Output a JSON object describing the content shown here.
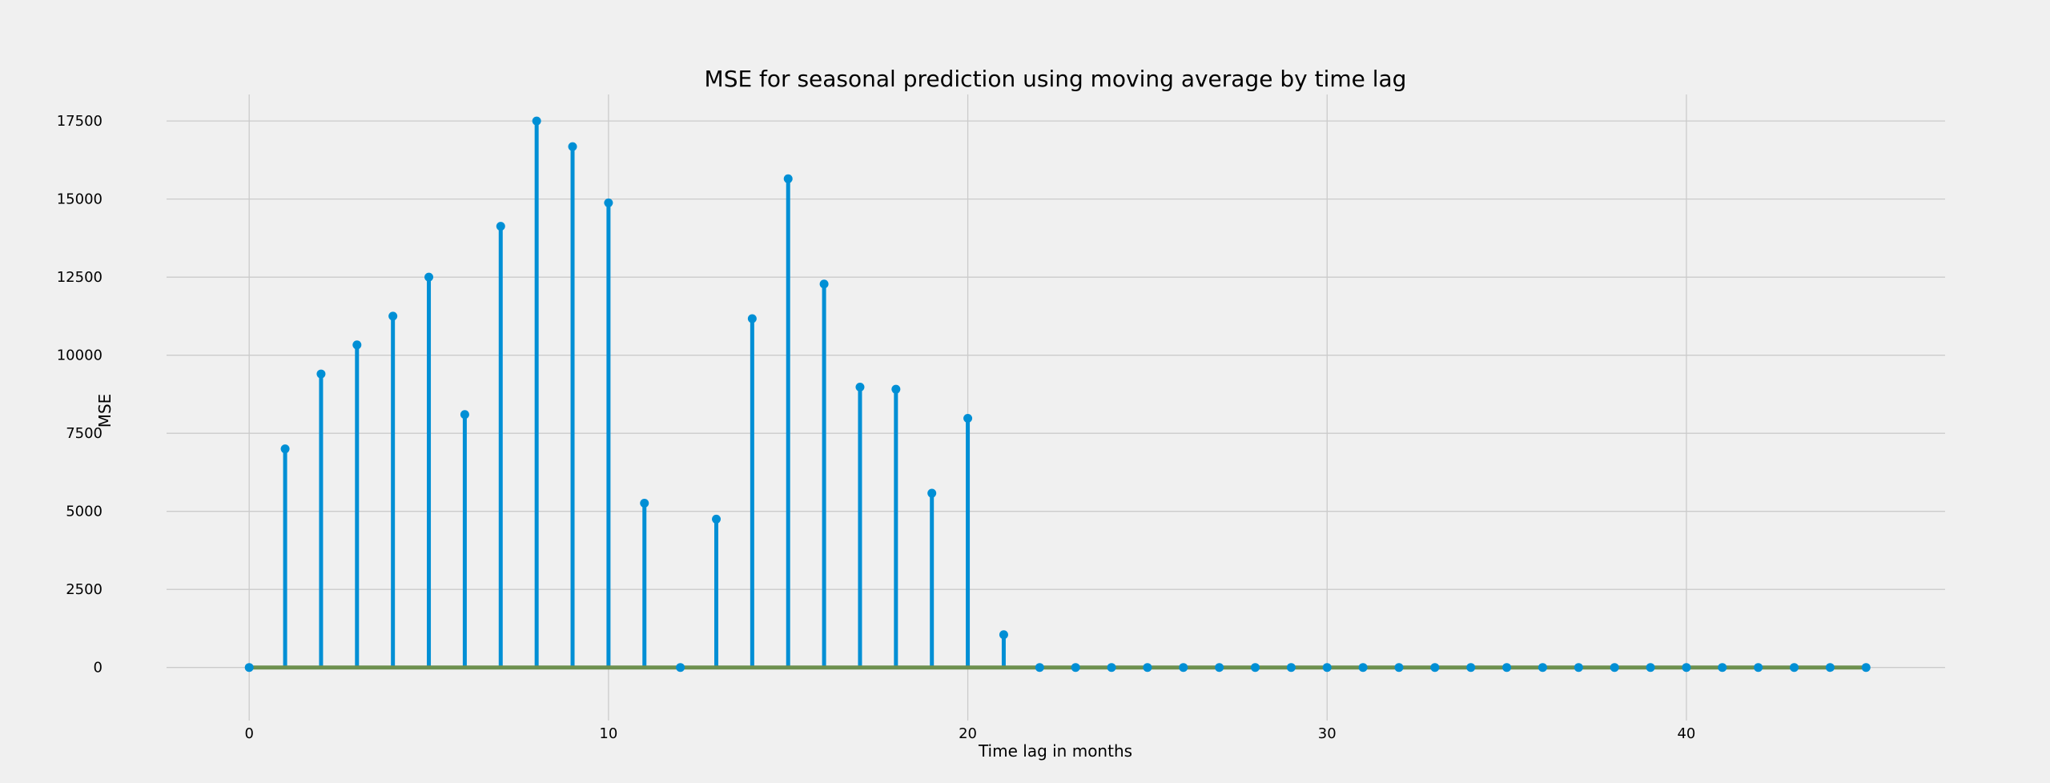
{
  "chart_data": {
    "type": "stem",
    "title": "MSE for seasonal prediction using moving average by time lag",
    "xlabel": "Time lag in months",
    "ylabel": "MSE",
    "x": [
      0,
      1,
      2,
      3,
      4,
      5,
      6,
      7,
      8,
      9,
      10,
      11,
      12,
      13,
      14,
      15,
      16,
      17,
      18,
      19,
      20,
      21,
      22,
      23,
      24,
      25,
      26,
      27,
      28,
      29,
      30,
      31,
      32,
      33,
      34,
      35,
      36,
      37,
      38,
      39,
      40,
      41,
      42,
      43,
      44,
      45
    ],
    "values": [
      0,
      7000,
      9400,
      10330,
      11250,
      12500,
      8100,
      14130,
      17500,
      16680,
      14880,
      5260,
      0,
      4750,
      11170,
      15650,
      12280,
      8980,
      8910,
      5580,
      7980,
      1050,
      0,
      0,
      0,
      0,
      0,
      0,
      0,
      0,
      0,
      0,
      0,
      0,
      0,
      0,
      0,
      0,
      0,
      0,
      0,
      0,
      0,
      0,
      0,
      0
    ],
    "xticks": [
      0,
      10,
      20,
      30,
      40
    ],
    "xtick_labels": [
      "0",
      "10",
      "20",
      "30",
      "40"
    ],
    "yticks": [
      0,
      2500,
      5000,
      7500,
      10000,
      12500,
      15000,
      17500
    ],
    "ytick_labels": [
      "0",
      "2500",
      "5000",
      "7500",
      "10000",
      "12500",
      "15000",
      "17500"
    ],
    "xlim": [
      -2.3,
      47.2
    ],
    "ylim": [
      -1700,
      18350
    ],
    "baseline": 0,
    "grid": true,
    "legend": "none",
    "colors": {
      "background": "#f0f0f0",
      "grid": "#cbcbcb",
      "stem": "#008fd5",
      "baseline": "#6d904f"
    }
  }
}
